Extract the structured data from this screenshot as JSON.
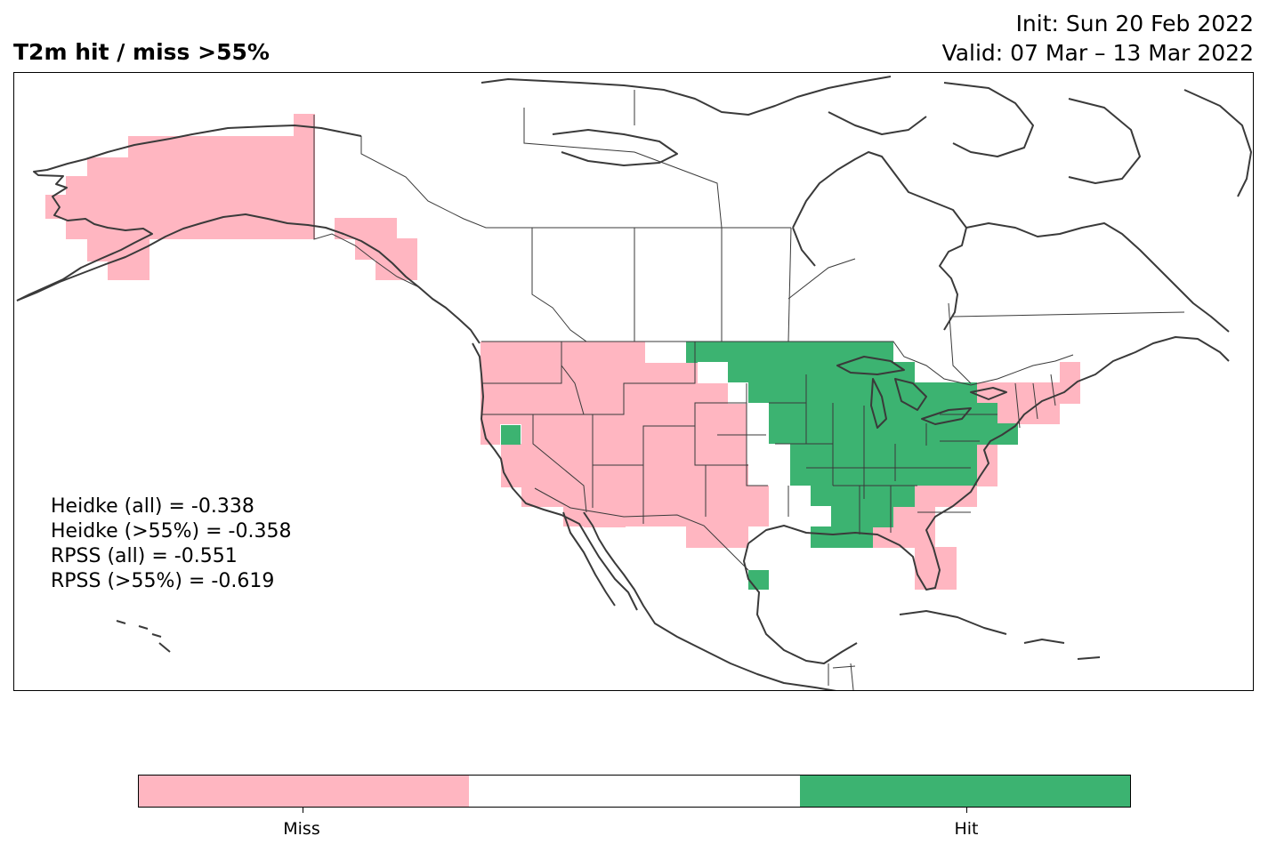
{
  "header": {
    "title": "T2m hit / miss  >55%",
    "init": "Init: Sun 20 Feb 2022",
    "valid": "Valid: 07 Mar – 13 Mar 2022"
  },
  "stats": {
    "heidke_all": "Heidke (all) = -0.338",
    "heidke_55": "Heidke (>55%) = -0.358",
    "rpss_all": "RPSS (all) = -0.551",
    "rpss_55": "RPSS (>55%) = -0.619"
  },
  "legend": {
    "miss_label": "Miss",
    "hit_label": "Hit",
    "colors": {
      "miss": "#ffb6c1",
      "neutral": "#ffffff",
      "hit": "#3cb371"
    }
  }
}
